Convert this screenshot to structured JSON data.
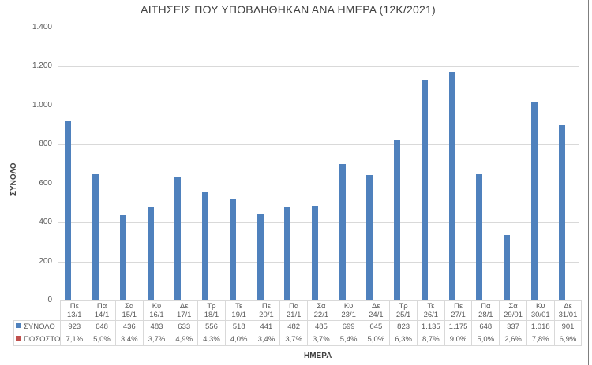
{
  "chart_data": {
    "type": "bar",
    "title": "ΑΙΤΗΣΕΙΣ ΠΟΥ ΥΠΟΒΛΗΘΗΚΑΝ ΑΝΑ ΗΜΕΡΑ (12Κ/2021)",
    "xlabel": "ΗΜΕΡΑ",
    "ylabel": "ΣΥΝΟΛΟ",
    "ylim": [
      0,
      1400
    ],
    "yticks": [
      "0",
      "200",
      "400",
      "600",
      "800",
      "1.000",
      "1.200",
      "1.400"
    ],
    "grid": true,
    "legend_position": "data-table",
    "categories": [
      {
        "day": "Πε",
        "date": "13/1"
      },
      {
        "day": "Πα",
        "date": "14/1"
      },
      {
        "day": "Σα",
        "date": "15/1"
      },
      {
        "day": "Κυ",
        "date": "16/1"
      },
      {
        "day": "Δε",
        "date": "17/1"
      },
      {
        "day": "Τρ",
        "date": "18/1"
      },
      {
        "day": "Τε",
        "date": "19/1"
      },
      {
        "day": "Πε",
        "date": "20/1"
      },
      {
        "day": "Πα",
        "date": "21/1"
      },
      {
        "day": "Σα",
        "date": "22/1"
      },
      {
        "day": "Κυ",
        "date": "23/1"
      },
      {
        "day": "Δε",
        "date": "24/1"
      },
      {
        "day": "Τρ",
        "date": "25/1"
      },
      {
        "day": "Τε",
        "date": "26/1"
      },
      {
        "day": "Πε",
        "date": "27/1"
      },
      {
        "day": "Πα",
        "date": "28/1"
      },
      {
        "day": "Σα",
        "date": "29/01"
      },
      {
        "day": "Κυ",
        "date": "30/01"
      },
      {
        "day": "Δε",
        "date": "31/01"
      }
    ],
    "series": [
      {
        "name": "ΣΥΝΟΛΟ",
        "color": "#4f81bd",
        "values": [
          923,
          648,
          436,
          483,
          633,
          556,
          518,
          441,
          482,
          485,
          699,
          645,
          823,
          1135,
          1175,
          648,
          337,
          1018,
          901
        ],
        "labels": [
          "923",
          "648",
          "436",
          "483",
          "633",
          "556",
          "518",
          "441",
          "482",
          "485",
          "699",
          "645",
          "823",
          "1.135",
          "1.175",
          "648",
          "337",
          "1.018",
          "901"
        ]
      },
      {
        "name": "ΠΟΣΟΣΤΟ",
        "color": "#c0504d",
        "values": [
          7.1,
          5.0,
          3.4,
          3.7,
          4.9,
          4.3,
          4.0,
          3.4,
          3.7,
          3.7,
          5.4,
          5.0,
          6.3,
          8.7,
          9.0,
          5.0,
          2.6,
          7.8,
          6.9
        ],
        "labels": [
          "7,1%",
          "5,0%",
          "3,4%",
          "3,7%",
          "4,9%",
          "4,3%",
          "4,0%",
          "3,4%",
          "3,7%",
          "3,7%",
          "5,4%",
          "5,0%",
          "6,3%",
          "8,7%",
          "9,0%",
          "5,0%",
          "2,6%",
          "7,8%",
          "6,9%"
        ]
      }
    ]
  }
}
